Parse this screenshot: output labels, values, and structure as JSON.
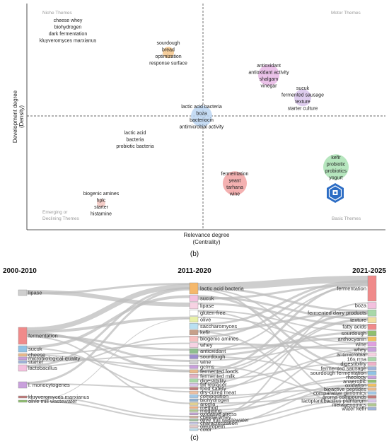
{
  "chart_data": [
    {
      "type": "scatter",
      "panel_label": "(b)",
      "xlabel": "Relevance degree",
      "xlabel_sub": "(Centrality)",
      "ylabel": "Development degree",
      "ylabel_sub": "(Density)",
      "quadrants": {
        "top_left": "Niche Themes",
        "top_right": "Motor Themes",
        "bottom_left_1": "Emerging or",
        "bottom_left_2": "Declining Themes",
        "bottom_right": "Basic Themes"
      },
      "clusters": [
        {
          "id": "niche",
          "color": "",
          "labels": [
            "cheese whey",
            "biohydrogen",
            "dark fermentation",
            "kluyveromyces marxianus"
          ],
          "bubble": false
        },
        {
          "id": "sourdough",
          "color": "#f5c58a",
          "labels": [
            "sourdough",
            "bread",
            "optimization",
            "response surface"
          ],
          "bubble": true
        },
        {
          "id": "antioxidant",
          "color": "#e9b8e6",
          "labels": [
            "antioxidant",
            "antioxidant activity",
            "shalgam",
            "vinegar"
          ],
          "bubble": true
        },
        {
          "id": "sucuk",
          "color": "#d9c6ec",
          "labels": [
            "sucuk",
            "fermented sausage",
            "texture",
            "starter culture"
          ],
          "bubble": true
        },
        {
          "id": "lab",
          "color": "#bcd6f2",
          "labels": [
            "lactic acid bacteria",
            "boza",
            "bacteriocin",
            "antimicrobial activity"
          ],
          "bubble": true
        },
        {
          "id": "lactic",
          "color": "",
          "labels": [
            "lactic acid",
            "bacteria",
            "probiotic bacteria"
          ],
          "bubble": false
        },
        {
          "id": "kefir",
          "color": "#a9e2b3",
          "labels": [
            "kefir",
            "probiotic",
            "probiotics",
            "yogurt"
          ],
          "bubble": true
        },
        {
          "id": "fermentation",
          "color": "#f2a3a3",
          "labels": [
            "fermentation",
            "yeast",
            "tarhana",
            "wine"
          ],
          "bubble": true
        },
        {
          "id": "amines",
          "color": "#f3c6c0",
          "labels": [
            "biogenic amines",
            "hplc",
            "starter",
            "histamine"
          ],
          "bubble": true
        }
      ],
      "grid": false,
      "logo_icon": "logo-badge-icon"
    },
    {
      "type": "sankey",
      "panel_label": "(c)",
      "periods": [
        "2000-2010",
        "2011-2020",
        "2021-2025"
      ],
      "columns": [
        {
          "nodes": [
            {
              "label": "lipase",
              "color": "#cfcfcf"
            },
            {
              "label": "fermentation",
              "color": "#f08a8a"
            },
            {
              "label": "sucuk",
              "color": "#8fc3e6"
            },
            {
              "label": "cheese",
              "color": "#e9b98a"
            },
            {
              "label": "microbiological quality",
              "color": "#c9a0dc"
            },
            {
              "label": "starter",
              "color": "#9fb3d9"
            },
            {
              "label": "lactobacillus",
              "color": "#f3c0de"
            },
            {
              "label": "l. monocytogenes",
              "color": "#c9a0dc"
            },
            {
              "label": "kluyveromyces marxianus",
              "color": "#c07a7a"
            },
            {
              "label": "olive mill wastewater",
              "color": "#8fbf6f"
            }
          ]
        },
        {
          "nodes": [
            {
              "label": "lactic acid bacteria",
              "color": "#f5b86b"
            },
            {
              "label": "sucuk",
              "color": "#f3c0de"
            },
            {
              "label": "lipase",
              "color": "#f7d2e3"
            },
            {
              "label": "gluten-free",
              "color": "#ffffff"
            },
            {
              "label": "olive",
              "color": "#e8f0a8"
            },
            {
              "label": "saccharomyces",
              "color": "#b9e0f2"
            },
            {
              "label": "kefir",
              "color": "#c7a08a"
            },
            {
              "label": "biogenic amines",
              "color": "#f7c0c0"
            },
            {
              "label": "whey",
              "color": "#f7d2e3"
            },
            {
              "label": "antioxidant",
              "color": "#8fbf8f"
            },
            {
              "label": "sourdough",
              "color": "#9f8fcf"
            },
            {
              "label": "wine",
              "color": "#d0d0d0"
            },
            {
              "label": "gc/ms",
              "color": "#c9a0dc"
            },
            {
              "label": "fermented foods",
              "color": "#e9b98a"
            },
            {
              "label": "fermented milk",
              "color": "#e4b0c0"
            },
            {
              "label": "digestibility",
              "color": "#a8d8a8"
            },
            {
              "label": "fat replacer",
              "color": "#d9c6ec"
            },
            {
              "label": "food safety",
              "color": "#c07a7a"
            },
            {
              "label": "dry-cured meat",
              "color": "#f0c0a0"
            },
            {
              "label": "composition",
              "color": "#a0c8e8"
            },
            {
              "label": "biohydrogen",
              "color": "#90b0d0"
            },
            {
              "label": "aroma",
              "color": "#e0d090"
            },
            {
              "label": "method",
              "color": "#f0b080"
            },
            {
              "label": "modeling",
              "color": "#b0c890"
            },
            {
              "label": "oxidative stress",
              "color": "#c0a0d0"
            },
            {
              "label": "cheese whey",
              "color": "#d0b0a0"
            },
            {
              "label": "olive mill wastewater",
              "color": "#a0c0a0"
            },
            {
              "label": "characterization",
              "color": "#c8c8e8"
            },
            {
              "label": "oleuropein",
              "color": "#e8c8c8"
            },
            {
              "label": "color",
              "color": "#b8d8e8"
            }
          ]
        },
        {
          "nodes": [
            {
              "label": "fermentation",
              "color": "#f08a8a"
            },
            {
              "label": "boza",
              "color": "#f3c0de"
            },
            {
              "label": "fermented dairy products",
              "color": "#a8d8a8"
            },
            {
              "label": "texture",
              "color": "#f0e0a0"
            },
            {
              "label": "fatty acids",
              "color": "#f08a8a"
            },
            {
              "label": "sourdough",
              "color": "#8fbf6f"
            },
            {
              "label": "anthocyanin",
              "color": "#f0c060"
            },
            {
              "label": "wine",
              "color": "#e0a0e0"
            },
            {
              "label": "whey",
              "color": "#c9a0dc"
            },
            {
              "label": "antimicrobial",
              "color": "#f7d2e3"
            },
            {
              "label": "16s rrna",
              "color": "#a8d8a8"
            },
            {
              "label": "digestibility",
              "color": "#f0b0c8"
            },
            {
              "label": "fermented sausage",
              "color": "#9fb3d9"
            },
            {
              "label": "sourdough fermentation",
              "color": "#8fc3e6"
            },
            {
              "label": "rheology",
              "color": "#c9a0dc"
            },
            {
              "label": "anaerobic",
              "color": "#8fbf6f"
            },
            {
              "label": "oxidation",
              "color": "#f0c060"
            },
            {
              "label": "bioactive peptides",
              "color": "#e9b98a"
            },
            {
              "label": "comparative genomics",
              "color": "#a0c8e8"
            },
            {
              "label": "aroma compounds",
              "color": "#c07a7a"
            },
            {
              "label": "lactiplantibacillus plantarum",
              "color": "#d9c6ec"
            },
            {
              "label": "metagenomics",
              "color": "#b0c890"
            },
            {
              "label": "water kefir",
              "color": "#9fb3d9"
            }
          ]
        }
      ]
    }
  ]
}
